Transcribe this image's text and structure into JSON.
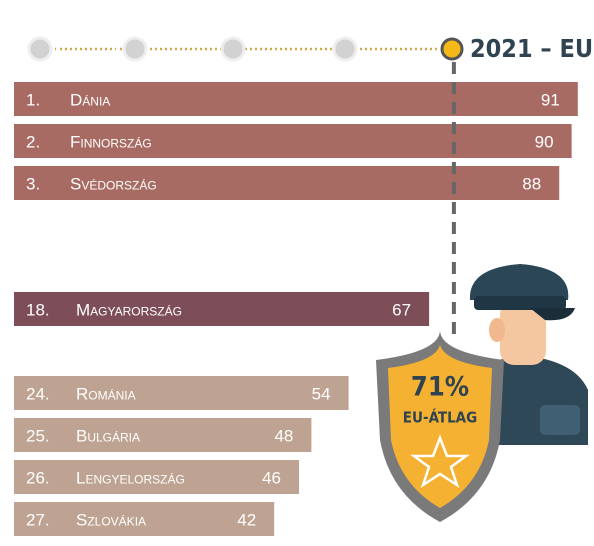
{
  "chart_data": {
    "type": "bar",
    "timeline_label": "2021 – EU",
    "ranks": [
      "1.",
      "2.",
      "3.",
      "18.",
      "24.",
      "25.",
      "26.",
      "27."
    ],
    "categories": [
      "Dánia",
      "Finnország",
      "Svédország",
      "Magyarország",
      "Románia",
      "Bulgária",
      "Lengyelország",
      "Szlovákia"
    ],
    "values": [
      91,
      90,
      88,
      67,
      54,
      48,
      46,
      42
    ],
    "colors": [
      "#a86b64",
      "#a86b64",
      "#a86b64",
      "#7d4e58",
      "#bea392",
      "#bea392",
      "#bea392",
      "#bea392"
    ],
    "xlim": [
      0,
      92
    ],
    "average": {
      "value": 71,
      "label": "71%",
      "text": "EU-átlag"
    }
  }
}
